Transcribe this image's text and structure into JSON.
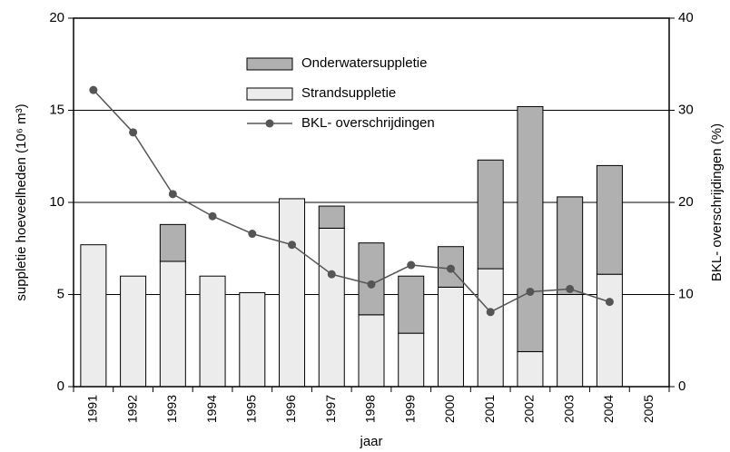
{
  "chart_data": {
    "type": "bar-line",
    "x_label": "jaar",
    "y_label": "suppletie hoeveelheden (10⁶ m³)",
    "y2_label": "BKL- overschrijdingen (%)",
    "categories": [
      "1991",
      "1992",
      "1993",
      "1994",
      "1995",
      "1996",
      "1997",
      "1998",
      "1999",
      "2000",
      "2001",
      "2002",
      "2003",
      "2004",
      "2005"
    ],
    "series": [
      {
        "name": "Strandsuppletie",
        "type": "bar",
        "color": "#ececec",
        "values": [
          7.7,
          6.0,
          6.8,
          6.0,
          5.1,
          10.2,
          8.6,
          3.9,
          2.9,
          5.4,
          6.4,
          1.9,
          5.0,
          6.1,
          null
        ]
      },
      {
        "name": "Onderwatersuppletie",
        "type": "bar",
        "color": "#b0b0b0",
        "values": [
          0,
          0,
          2.0,
          0,
          0,
          0,
          1.2,
          3.9,
          3.1,
          2.2,
          5.9,
          13.3,
          5.3,
          5.9,
          null
        ]
      },
      {
        "name": "BKL- overschrijdingen",
        "type": "line",
        "axis": "y2",
        "color": "#555555",
        "values": [
          32.2,
          27.6,
          20.9,
          18.5,
          16.6,
          15.4,
          12.2,
          11.1,
          13.2,
          12.8,
          8.1,
          10.3,
          10.6,
          9.2,
          null
        ]
      }
    ],
    "stacked": true,
    "ylim": [
      0,
      20
    ],
    "yticks": [
      0,
      5,
      10,
      15,
      20
    ],
    "y2lim": [
      0,
      40
    ],
    "y2ticks": [
      0,
      10,
      20,
      30,
      40
    ],
    "grid": true,
    "legend": "top"
  }
}
